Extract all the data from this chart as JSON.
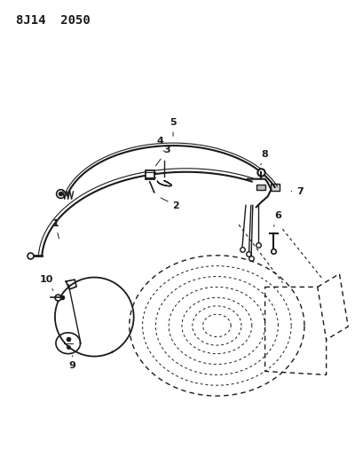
{
  "title": "8J14  2050",
  "title_fontsize": 10,
  "title_fontweight": "bold",
  "bg_color": "#ffffff",
  "line_color": "#1a1a1a",
  "figsize": [
    4.0,
    5.33
  ],
  "dpi": 100,
  "label_fontsize": 8
}
